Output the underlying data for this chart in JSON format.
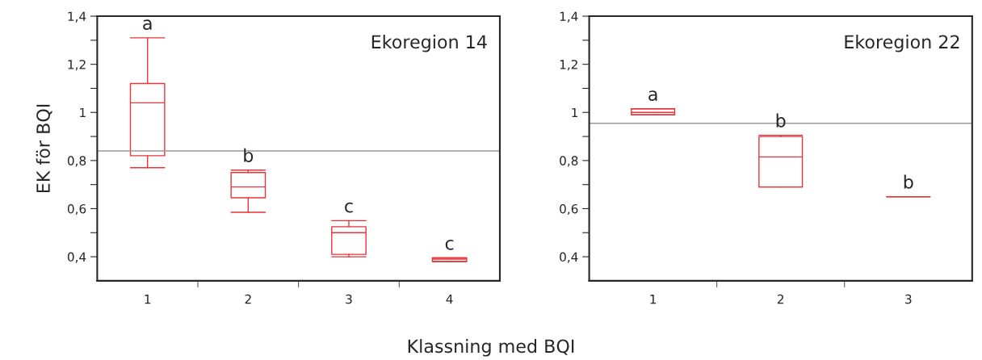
{
  "chart_data": [
    {
      "type": "box",
      "title": "Ekoregion 14",
      "xlabel": "Klassning med BQI",
      "ylabel": "EK för BQI",
      "categories": [
        "1",
        "2",
        "3",
        "4"
      ],
      "color": "#e8343c",
      "boxes": [
        {
          "low": 0.77,
          "q1": 0.82,
          "median": 1.04,
          "q3": 1.12,
          "high": 1.31
        },
        {
          "low": 0.585,
          "q1": 0.645,
          "median": 0.69,
          "q3": 0.75,
          "high": 0.76
        },
        {
          "low": 0.4,
          "q1": 0.41,
          "median": 0.5,
          "q3": 0.525,
          "high": 0.55
        },
        {
          "low": 0.38,
          "q1": 0.38,
          "median": 0.39,
          "q3": 0.395,
          "high": 0.395
        }
      ],
      "ylim": [
        0.3,
        1.4
      ],
      "yticks": [
        {
          "value": 0.4,
          "label": "0,4"
        },
        {
          "value": 0.5,
          "label": null
        },
        {
          "value": 0.6,
          "label": "0,6"
        },
        {
          "value": 0.7,
          "label": null
        },
        {
          "value": 0.8,
          "label": "0,8"
        },
        {
          "value": 0.9,
          "label": null
        },
        {
          "value": 1.0,
          "label": "1"
        },
        {
          "value": 1.1,
          "label": null
        },
        {
          "value": 1.2,
          "label": "1,2"
        },
        {
          "value": 1.3,
          "label": null
        },
        {
          "value": 1.4,
          "label": "1,4"
        }
      ],
      "ref_lines": [
        {
          "axis": "y",
          "value": 0.84,
          "color": "#999999"
        }
      ],
      "annotations": [
        "a",
        "b",
        "c",
        "c"
      ],
      "grid": false,
      "legend": false
    },
    {
      "type": "box",
      "title": "Ekoregion 22",
      "categories": [
        "1",
        "2",
        "3"
      ],
      "color": "#e8343c",
      "boxes": [
        {
          "low": 0.99,
          "q1": 0.99,
          "median": 1.0,
          "q3": 1.015,
          "high": 1.015
        },
        {
          "low": 0.69,
          "q1": 0.69,
          "median": 0.815,
          "q3": 0.9,
          "high": 0.905
        },
        {
          "low": 0.65,
          "q1": 0.65,
          "median": 0.65,
          "q3": 0.65,
          "high": 0.65
        }
      ],
      "ylim": [
        0.3,
        1.4
      ],
      "yticks": [
        {
          "value": 0.4,
          "label": "0,4"
        },
        {
          "value": 0.5,
          "label": null
        },
        {
          "value": 0.6,
          "label": "0,6"
        },
        {
          "value": 0.7,
          "label": null
        },
        {
          "value": 0.8,
          "label": "0,8"
        },
        {
          "value": 0.9,
          "label": null
        },
        {
          "value": 1.0,
          "label": "1"
        },
        {
          "value": 1.1,
          "label": null
        },
        {
          "value": 1.2,
          "label": "1,2"
        },
        {
          "value": 1.3,
          "label": null
        },
        {
          "value": 1.4,
          "label": "1,4"
        }
      ],
      "ref_lines": [
        {
          "axis": "y",
          "value": 0.955,
          "color": "#999999"
        }
      ],
      "annotations": [
        "a",
        "b",
        "b"
      ],
      "grid": false,
      "legend": false
    }
  ]
}
